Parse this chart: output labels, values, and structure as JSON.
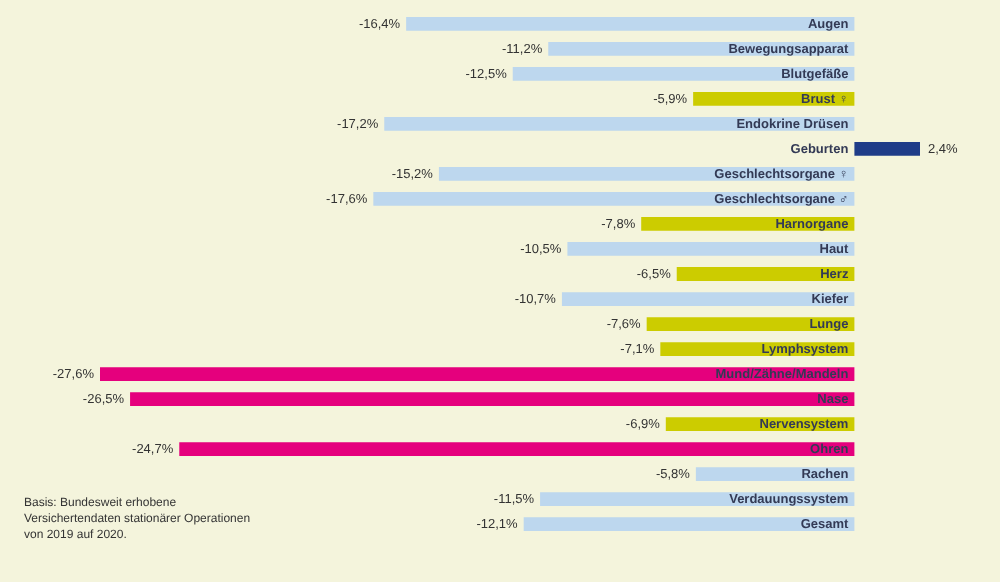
{
  "chart_data": {
    "type": "bar",
    "orientation": "horizontal",
    "tick_labels": false,
    "categories": [
      "Augen",
      "Bewegungsapparat",
      "Blutgefäße",
      "Brust ♀",
      "Endokrine Drüsen",
      "Geburten",
      "Geschlechtsorgane ♀",
      "Geschlechtsorgane ♂",
      "Harnorgane",
      "Haut",
      "Herz",
      "Kiefer",
      "Lunge",
      "Lymphsystem",
      "Mund/Zähne/Mandeln",
      "Nase",
      "Nervensystem",
      "Ohren",
      "Rachen",
      "Verdauungssystem",
      "Gesamt"
    ],
    "values": [
      -16.4,
      -11.2,
      -12.5,
      -5.9,
      -17.2,
      2.4,
      -15.2,
      -17.6,
      -7.8,
      -10.5,
      -6.5,
      -10.7,
      -7.6,
      -7.1,
      -27.6,
      -26.5,
      -6.9,
      -24.7,
      -5.8,
      -11.5,
      -12.1
    ],
    "value_labels": [
      "-16,4%",
      "-11,2%",
      "-12,5%",
      "-5,9%",
      "-17,2%",
      "2,4%",
      "-15,2%",
      "-17,6%",
      "-7,8%",
      "-10,5%",
      "-6,5%",
      "-10,7%",
      "-7,6%",
      "-7,1%",
      "-27,6%",
      "-26,5%",
      "-6,9%",
      "-24,7%",
      "-5,8%",
      "-11,5%",
      "-12,1%"
    ],
    "colors": [
      "#bdd7ee",
      "#bdd7ee",
      "#bdd7ee",
      "#cccc00",
      "#bdd7ee",
      "#1f3c88",
      "#bdd7ee",
      "#bdd7ee",
      "#cccc00",
      "#bdd7ee",
      "#cccc00",
      "#bdd7ee",
      "#cccc00",
      "#cccc00",
      "#e5007d",
      "#e5007d",
      "#cccc00",
      "#e5007d",
      "#bdd7ee",
      "#bdd7ee",
      "#bdd7ee"
    ],
    "annotations": [
      "Basis: Bundesweit erhobene Versichertendaten stationärer Operationen von 2019 auf 2020."
    ]
  }
}
